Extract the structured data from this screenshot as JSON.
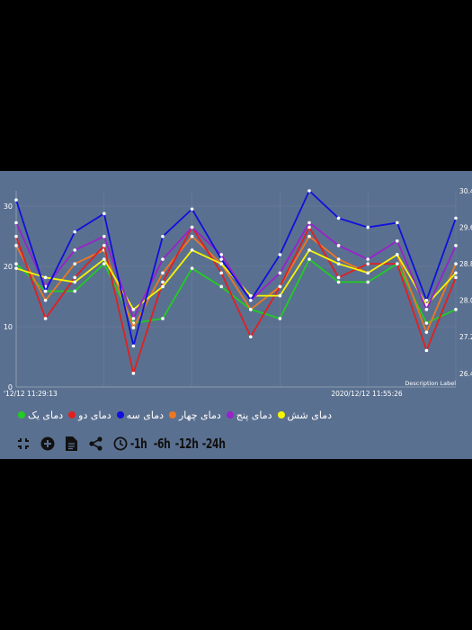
{
  "chart_data": {
    "type": "line",
    "x": [
      "'12/12 11:29:13",
      "",
      "",
      "",
      "",
      "",
      "",
      "",
      "",
      "",
      "",
      "",
      "",
      "",
      "",
      "2020/12/12 11:55:26"
    ],
    "x_tick_labels": [
      "'12/12 11:29:13",
      "2020/12/12 11:55:26"
    ],
    "y_left_ticks": [
      "0",
      "10",
      "20",
      "30"
    ],
    "y_right_ticks": [
      "26.4",
      "27.2",
      "28.0",
      "28.8",
      "29.6",
      "30.4"
    ],
    "y_left_range": [
      0,
      30
    ],
    "y_right_range": [
      26.1,
      30.4
    ],
    "description_label": "Description Label",
    "grid": true,
    "legend_position": "bottom-left",
    "series": [
      {
        "name": "دمای یک",
        "color": "#22cc22",
        "values": [
          28.8,
          28.2,
          28.2,
          28.8,
          27.5,
          27.6,
          28.7,
          28.3,
          27.8,
          27.6,
          28.9,
          28.4,
          28.4,
          28.8,
          27.5,
          27.8
        ]
      },
      {
        "name": "دمای دو",
        "color": "#e02020",
        "values": [
          29.4,
          27.6,
          28.5,
          29.2,
          26.4,
          28.4,
          29.6,
          28.6,
          27.2,
          28.3,
          29.6,
          28.5,
          28.8,
          28.8,
          26.9,
          28.5
        ]
      },
      {
        "name": "دمای سه",
        "color": "#1010dd",
        "values": [
          30.2,
          28.2,
          29.5,
          29.9,
          27.0,
          29.4,
          30.0,
          28.9,
          28.0,
          29.0,
          30.4,
          29.8,
          29.6,
          29.7,
          28.0,
          29.8
        ]
      },
      {
        "name": "دمای چهار",
        "color": "#ee7722",
        "values": [
          29.2,
          28.0,
          28.8,
          29.1,
          27.4,
          28.6,
          29.4,
          28.8,
          27.8,
          28.3,
          29.4,
          28.9,
          28.6,
          29.0,
          27.3,
          28.8
        ]
      },
      {
        "name": "دمای پنج",
        "color": "#9922cc",
        "values": [
          29.7,
          28.3,
          29.1,
          29.4,
          27.6,
          28.9,
          29.6,
          29.0,
          28.0,
          28.6,
          29.7,
          29.2,
          28.9,
          29.3,
          27.8,
          29.2
        ]
      },
      {
        "name": "دمای شش",
        "color": "#f5f500",
        "values": [
          28.7,
          28.5,
          28.4,
          28.9,
          27.8,
          28.3,
          29.1,
          28.8,
          28.1,
          28.1,
          29.1,
          28.8,
          28.6,
          29.0,
          27.9,
          28.6
        ]
      }
    ]
  },
  "toolbar": {
    "time_buttons": [
      "-1h",
      "-6h",
      "-12h",
      "-24h"
    ]
  }
}
